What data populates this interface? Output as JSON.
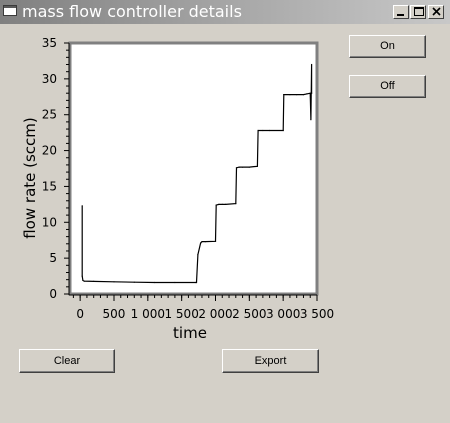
{
  "window": {
    "title": "mass flow controller details",
    "colors": {
      "background": "#d4d0c8",
      "title_bar_start": "#808080",
      "title_bar_end": "#c8c8c8",
      "plot_background": "#ffffff",
      "line": "#000000"
    }
  },
  "title_controls": {
    "minimize_icon": "minimize-icon",
    "maximize_icon": "maximize-icon",
    "close_icon": "close-icon"
  },
  "buttons": {
    "on_label": "On",
    "off_label": "Off",
    "clear_label": "Clear",
    "export_label": "Export"
  },
  "chart_data": {
    "type": "line",
    "title": "",
    "xlabel": "time",
    "ylabel": "flow rate (sccm)",
    "xlim": [
      -150,
      3500
    ],
    "ylim": [
      0,
      35
    ],
    "xticks": [
      0,
      500,
      1000,
      1500,
      2000,
      2500,
      3000,
      3500
    ],
    "xtick_labels": [
      "0",
      "500",
      "1 000",
      "1 500",
      "2 000",
      "2 500",
      "3 000",
      "3 500"
    ],
    "yticks": [
      0,
      5,
      10,
      15,
      20,
      25,
      30,
      35
    ],
    "ytick_labels": [
      "0",
      "5",
      "10",
      "15",
      "20",
      "25",
      "30",
      "35"
    ],
    "grid": false,
    "series": [
      {
        "name": "flow rate",
        "x": [
          30,
          30,
          40,
          60,
          200,
          500,
          800,
          1100,
          1400,
          1700,
          1720,
          1740,
          1780,
          1800,
          1850,
          2000,
          2010,
          2050,
          2100,
          2150,
          2300,
          2310,
          2350,
          2400,
          2500,
          2620,
          2630,
          2700,
          2800,
          3000,
          3010,
          3100,
          3200,
          3300,
          3350,
          3400,
          3410,
          3420,
          3420,
          3420
        ],
        "y": [
          12.3,
          2.5,
          1.9,
          1.8,
          1.75,
          1.7,
          1.65,
          1.6,
          1.6,
          1.6,
          1.6,
          5.5,
          7.1,
          7.3,
          7.3,
          7.35,
          12.4,
          12.5,
          12.5,
          12.5,
          12.6,
          17.6,
          17.7,
          17.7,
          17.7,
          17.8,
          22.8,
          22.8,
          22.8,
          22.8,
          27.8,
          27.8,
          27.8,
          27.8,
          27.9,
          28.0,
          24.3,
          32.0,
          28.0,
          28.0
        ]
      }
    ]
  }
}
